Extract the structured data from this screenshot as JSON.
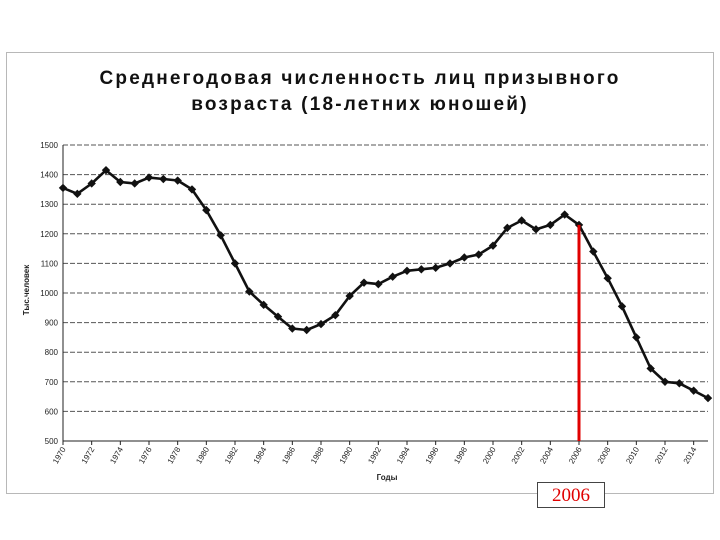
{
  "chart_data": {
    "type": "line",
    "title": "Среднегодовая численность лиц призывного\nвозраста (18-летних юношей)",
    "xlabel": "Годы",
    "ylabel": "Тыс.человек",
    "ylim": [
      500,
      1500
    ],
    "yticks": [
      500,
      600,
      700,
      800,
      900,
      1000,
      1100,
      1200,
      1300,
      1400,
      1500
    ],
    "ytick_labels": [
      "500",
      "600",
      "700",
      "800",
      "900",
      "1000",
      "1100",
      "1200",
      "1300",
      "1400",
      "1500"
    ],
    "xlim": [
      1970,
      2015
    ],
    "xticks": [
      1970,
      1972,
      1974,
      1976,
      1978,
      1980,
      1982,
      1984,
      1986,
      1988,
      1990,
      1992,
      1994,
      1996,
      1998,
      2000,
      2002,
      2004,
      2006,
      2008,
      2010,
      2012,
      2014
    ],
    "grid": "horizontal",
    "series": [
      {
        "color": "#111111",
        "marker": "diamond",
        "x": [
          1970,
          1971,
          1972,
          1973,
          1974,
          1975,
          1976,
          1977,
          1978,
          1979,
          1980,
          1981,
          1982,
          1983,
          1984,
          1985,
          1986,
          1987,
          1988,
          1989,
          1990,
          1991,
          1992,
          1993,
          1994,
          1995,
          1996,
          1997,
          1998,
          1999,
          2000,
          2001,
          2002,
          2003,
          2004,
          2005,
          2006,
          2007,
          2008,
          2009,
          2010,
          2011,
          2012,
          2013,
          2014,
          2015
        ],
        "y": [
          1355,
          1335,
          1370,
          1415,
          1375,
          1370,
          1390,
          1385,
          1380,
          1350,
          1280,
          1195,
          1100,
          1005,
          960,
          920,
          880,
          875,
          895,
          925,
          990,
          1035,
          1030,
          1055,
          1075,
          1080,
          1085,
          1100,
          1120,
          1130,
          1160,
          1220,
          1245,
          1215,
          1230,
          1265,
          1230,
          1140,
          1050,
          955,
          850,
          745,
          700,
          695,
          670,
          645
        ]
      }
    ],
    "annotations": [
      {
        "text": "2006",
        "x": 2006,
        "color": "#e00000"
      }
    ]
  }
}
